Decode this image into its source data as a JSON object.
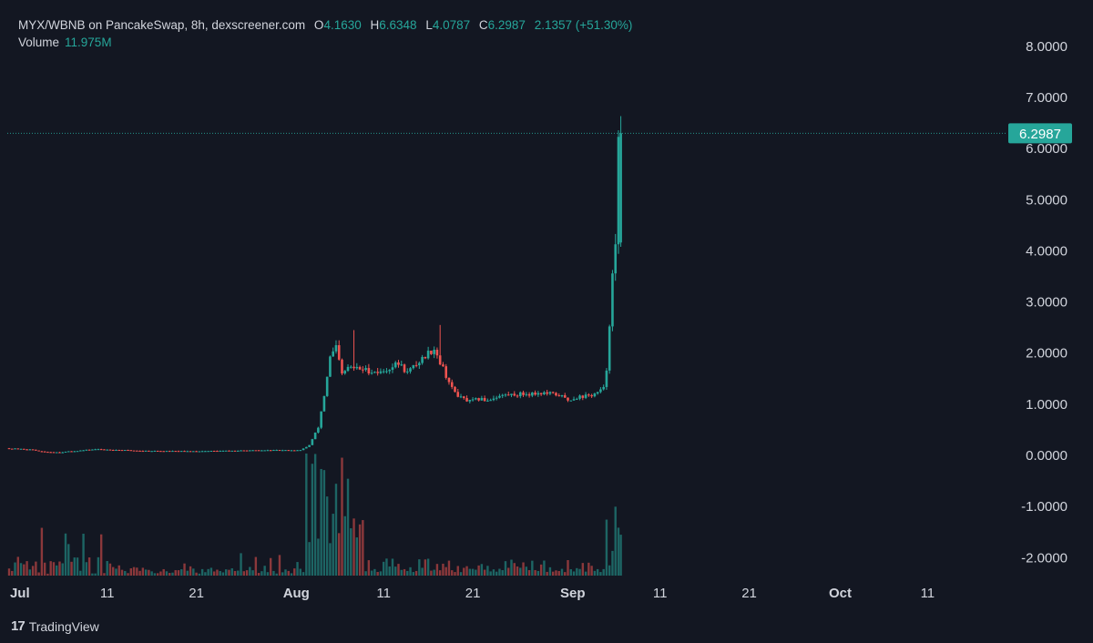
{
  "header": {
    "symbol": "MYX/WBNB on PancakeSwap, 8h, dexscreener.com",
    "ohlc": [
      {
        "label": "O",
        "value": "4.1630"
      },
      {
        "label": "H",
        "value": "6.6348"
      },
      {
        "label": "L",
        "value": "4.0787"
      },
      {
        "label": "C",
        "value": "6.2987"
      }
    ],
    "change": "2.1357 (+51.30%)"
  },
  "volume_legend": {
    "label": "Volume",
    "value": "11.975M"
  },
  "price_tag": "6.2987",
  "footer": {
    "logo": "17",
    "brand": "TradingView"
  },
  "colors": {
    "background": "#131722",
    "up": "#26a69a",
    "down": "#ef5350",
    "text": "#d1d4dc"
  },
  "chart_data": {
    "type": "candlestick",
    "interval": "8h",
    "y_ticks": [
      "8.0000",
      "7.0000",
      "6.0000",
      "5.0000",
      "4.0000",
      "3.0000",
      "2.0000",
      "1.0000",
      "0.0000",
      "-1.0000",
      "-2.0000"
    ],
    "ylim": [
      -2.3,
      8.5
    ],
    "x_ticks": [
      {
        "label": "Jul",
        "day": 1,
        "bold": true
      },
      {
        "label": "11",
        "day": 11
      },
      {
        "label": "21",
        "day": 21
      },
      {
        "label": "Aug",
        "day": 32,
        "bold": true
      },
      {
        "label": "11",
        "day": 42
      },
      {
        "label": "21",
        "day": 52
      },
      {
        "label": "Sep",
        "day": 63,
        "bold": true
      },
      {
        "label": "11",
        "day": 73
      },
      {
        "label": "21",
        "day": 83
      },
      {
        "label": "Oct",
        "day": 93,
        "bold": true
      },
      {
        "label": "11",
        "day": 103
      }
    ],
    "keypoints": [
      [
        0,
        0.14
      ],
      [
        3,
        0.11
      ],
      [
        4,
        0.07
      ],
      [
        6,
        0.06
      ],
      [
        8,
        0.09
      ],
      [
        10,
        0.12
      ],
      [
        12,
        0.11
      ],
      [
        15,
        0.09
      ],
      [
        20,
        0.08
      ],
      [
        25,
        0.09
      ],
      [
        30,
        0.1
      ],
      [
        33,
        0.1
      ],
      [
        34,
        0.2
      ],
      [
        35,
        0.55
      ],
      [
        35.7,
        1.2
      ],
      [
        36.3,
        1.9
      ],
      [
        37,
        2.1
      ],
      [
        37.7,
        1.55
      ],
      [
        38.3,
        1.72
      ],
      [
        40,
        1.68
      ],
      [
        42,
        1.62
      ],
      [
        44,
        1.8
      ],
      [
        45,
        1.62
      ],
      [
        46,
        1.78
      ],
      [
        47,
        1.95
      ],
      [
        48,
        2.1
      ],
      [
        49,
        1.7
      ],
      [
        50,
        1.3
      ],
      [
        51,
        1.12
      ],
      [
        52,
        1.05
      ],
      [
        53,
        1.1
      ],
      [
        54,
        1.08
      ],
      [
        55,
        1.15
      ],
      [
        56,
        1.18
      ],
      [
        58,
        1.2
      ],
      [
        60,
        1.22
      ],
      [
        62,
        1.18
      ],
      [
        63,
        1.08
      ],
      [
        64,
        1.14
      ],
      [
        65.5,
        1.17
      ],
      [
        66.3,
        1.22
      ],
      [
        67,
        1.3
      ],
      [
        67.3,
        1.6
      ],
      [
        67.7,
        2.7
      ],
      [
        68,
        3.5
      ],
      [
        68.4,
        4.16
      ],
      [
        68.7,
        6.3
      ]
    ],
    "last_candle": {
      "open": 4.163,
      "high": 6.6348,
      "low": 4.0787,
      "close": 6.2987
    },
    "volume_max_m": 40
  }
}
